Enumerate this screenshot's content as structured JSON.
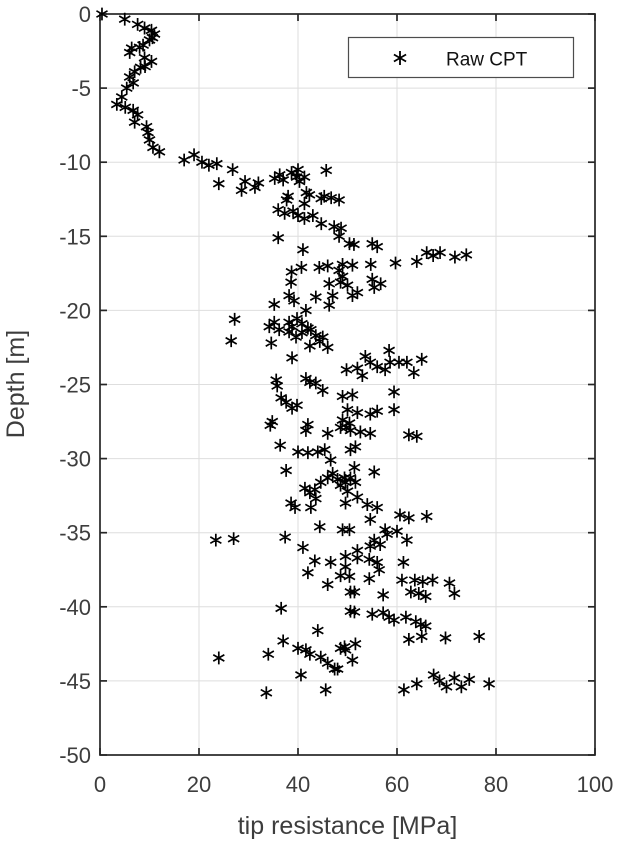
{
  "figure": {
    "background": "#ffffff"
  },
  "chart_data": {
    "type": "scatter",
    "title": "",
    "xlabel": "tip resistance [MPa]",
    "ylabel": "Depth [m]",
    "xlim": [
      0,
      100
    ],
    "ylim": [
      -50,
      0
    ],
    "xticks": [
      0,
      20,
      40,
      60,
      80,
      100
    ],
    "yticks": [
      0,
      -5,
      -10,
      -15,
      -20,
      -25,
      -30,
      -35,
      -40,
      -45,
      -50
    ],
    "grid": true,
    "grid_color": "#dedede",
    "axis_color": "#262626",
    "label_color": "#3d3d3d",
    "marker": {
      "shape": "asterisk",
      "color": "#000000",
      "size": 13
    },
    "legend": {
      "position": "top-right",
      "entries": [
        {
          "label": "Raw CPT",
          "marker": "asterisk"
        }
      ]
    },
    "series": [
      {
        "name": "Raw CPT"
      }
    ],
    "points": [
      [
        0.4,
        0
      ],
      [
        5,
        -0.35
      ],
      [
        7.6,
        -0.7
      ],
      [
        9,
        -0.95
      ],
      [
        10.4,
        -1.1
      ],
      [
        11,
        -1.35
      ],
      [
        10.6,
        -1.6
      ],
      [
        10,
        -1.75
      ],
      [
        8.7,
        -2.1
      ],
      [
        8,
        -2.25
      ],
      [
        6.4,
        -2.3
      ],
      [
        6,
        -2.6
      ],
      [
        9,
        -2.95
      ],
      [
        10.4,
        -3.2
      ],
      [
        9.1,
        -3.55
      ],
      [
        8.2,
        -3.6
      ],
      [
        7,
        -3.9
      ],
      [
        6,
        -4.25
      ],
      [
        6.7,
        -4.65
      ],
      [
        5.4,
        -5
      ],
      [
        4.4,
        -5.6
      ],
      [
        3.4,
        -6.1
      ],
      [
        5.1,
        -6.3
      ],
      [
        6.7,
        -6.5
      ],
      [
        7.6,
        -6.8
      ],
      [
        7,
        -7.3
      ],
      [
        9.4,
        -7.6
      ],
      [
        9.7,
        -8
      ],
      [
        10,
        -8.5
      ],
      [
        10.7,
        -9
      ],
      [
        12,
        -9.3
      ],
      [
        19,
        -9.5
      ],
      [
        17,
        -9.85
      ],
      [
        20.6,
        -10
      ],
      [
        22,
        -10.2
      ],
      [
        23.6,
        -10.1
      ],
      [
        26.8,
        -10.5
      ],
      [
        24,
        -11.45
      ],
      [
        28.6,
        -11.9
      ],
      [
        29.3,
        -11.3
      ],
      [
        31.3,
        -11.7
      ],
      [
        32,
        -11.4
      ],
      [
        35.3,
        -11.1
      ],
      [
        36.3,
        -10.85
      ],
      [
        37,
        -11.2
      ],
      [
        38.7,
        -10.7
      ],
      [
        39.7,
        -11
      ],
      [
        40.3,
        -11.3
      ],
      [
        41.3,
        -11
      ],
      [
        40,
        -10.5
      ],
      [
        45.7,
        -10.55
      ],
      [
        38,
        -12.3
      ],
      [
        37.7,
        -12.55
      ],
      [
        41.3,
        -12.8
      ],
      [
        41.7,
        -12.05
      ],
      [
        42.3,
        -12.2
      ],
      [
        44.7,
        -12.45
      ],
      [
        45.3,
        -12.3
      ],
      [
        46.7,
        -12.4
      ],
      [
        48.3,
        -12.55
      ],
      [
        36,
        -13.2
      ],
      [
        37.3,
        -13.45
      ],
      [
        39,
        -13.3
      ],
      [
        40,
        -13.6
      ],
      [
        41.3,
        -13.8
      ],
      [
        43,
        -13.6
      ],
      [
        44.7,
        -14.15
      ],
      [
        47.3,
        -14.35
      ],
      [
        48.7,
        -14.45
      ],
      [
        48.3,
        -15
      ],
      [
        36,
        -15.1
      ],
      [
        41,
        -15.9
      ],
      [
        50.4,
        -15.5
      ],
      [
        51.3,
        -15.55
      ],
      [
        55,
        -15.5
      ],
      [
        56,
        -15.7
      ],
      [
        66,
        -16.1
      ],
      [
        67.3,
        -16.3
      ],
      [
        68.7,
        -16.1
      ],
      [
        71.7,
        -16.4
      ],
      [
        74,
        -16.25
      ],
      [
        49,
        -16.9
      ],
      [
        51,
        -16.95
      ],
      [
        54.7,
        -16.9
      ],
      [
        59.7,
        -16.8
      ],
      [
        64,
        -16.7
      ],
      [
        38.7,
        -17.4
      ],
      [
        40.7,
        -17.1
      ],
      [
        44.3,
        -17.1
      ],
      [
        46,
        -17
      ],
      [
        48.3,
        -17.3
      ],
      [
        49,
        -17.7
      ],
      [
        55,
        -17.9
      ],
      [
        56.7,
        -18.2
      ],
      [
        38.6,
        -18.1
      ],
      [
        46.3,
        -18.2
      ],
      [
        48.6,
        -18.1
      ],
      [
        50,
        -18.3
      ],
      [
        52,
        -18.8
      ],
      [
        55.4,
        -18.45
      ],
      [
        35.2,
        -19.6
      ],
      [
        38.2,
        -19
      ],
      [
        39.2,
        -19.35
      ],
      [
        43.6,
        -19.1
      ],
      [
        47,
        -19
      ],
      [
        46.3,
        -19.65
      ],
      [
        51,
        -19
      ],
      [
        41.6,
        -20
      ],
      [
        27.2,
        -20.6
      ],
      [
        34.2,
        -21.1
      ],
      [
        35.2,
        -20.8
      ],
      [
        38.2,
        -20.8
      ],
      [
        38.8,
        -21.1
      ],
      [
        39.8,
        -20.55
      ],
      [
        40.8,
        -20.9
      ],
      [
        42,
        -21.2
      ],
      [
        38.2,
        -21.45
      ],
      [
        36.2,
        -21.3
      ],
      [
        26.5,
        -22.05
      ],
      [
        34.6,
        -22.2
      ],
      [
        39.6,
        -21.8
      ],
      [
        40.8,
        -21.5
      ],
      [
        42.6,
        -21.3
      ],
      [
        43.6,
        -21.7
      ],
      [
        45,
        -21.8
      ],
      [
        42.4,
        -22.4
      ],
      [
        44.4,
        -22.1
      ],
      [
        46,
        -22.5
      ],
      [
        38.8,
        -23.2
      ],
      [
        58.4,
        -22.7
      ],
      [
        53.6,
        -23.1
      ],
      [
        54.6,
        -23.5
      ],
      [
        52,
        -23.9
      ],
      [
        53,
        -24.4
      ],
      [
        56,
        -23.8
      ],
      [
        58.6,
        -23.5
      ],
      [
        60.4,
        -23.5
      ],
      [
        62,
        -23.5
      ],
      [
        65,
        -23.3
      ],
      [
        63.4,
        -24.2
      ],
      [
        57.6,
        -24
      ],
      [
        49.8,
        -24
      ],
      [
        35.6,
        -24.7
      ],
      [
        35.8,
        -25.1
      ],
      [
        41.6,
        -24.6
      ],
      [
        42.4,
        -24.85
      ],
      [
        43.6,
        -24.9
      ],
      [
        45,
        -25.4
      ],
      [
        51,
        -25.7
      ],
      [
        59.4,
        -25.5
      ],
      [
        49,
        -25.8
      ],
      [
        36.6,
        -25.9
      ],
      [
        37.6,
        -26.2
      ],
      [
        39.8,
        -26.4
      ],
      [
        38.8,
        -26.6
      ],
      [
        50,
        -26.7
      ],
      [
        52,
        -26.9
      ],
      [
        54.6,
        -27
      ],
      [
        56,
        -26.8
      ],
      [
        59.4,
        -26.7
      ],
      [
        34.8,
        -27.5
      ],
      [
        49,
        -27.4
      ],
      [
        48.6,
        -27.9
      ],
      [
        49.8,
        -27.9
      ],
      [
        42,
        -27.7
      ],
      [
        34.4,
        -27.75
      ],
      [
        50.4,
        -27.6
      ],
      [
        41.6,
        -28.1
      ],
      [
        46,
        -28.3
      ],
      [
        50.6,
        -28.1
      ],
      [
        52.6,
        -28.2
      ],
      [
        54.6,
        -28.3
      ],
      [
        62.4,
        -28.4
      ],
      [
        64,
        -28.5
      ],
      [
        36.4,
        -29.1
      ],
      [
        40,
        -29.55
      ],
      [
        42,
        -29.6
      ],
      [
        44,
        -29.55
      ],
      [
        45.4,
        -29.4
      ],
      [
        50.6,
        -29.4
      ],
      [
        51.6,
        -29.2
      ],
      [
        46.6,
        -30.1
      ],
      [
        37.6,
        -30.8
      ],
      [
        51.4,
        -30.6
      ],
      [
        55.4,
        -30.9
      ],
      [
        47,
        -31
      ],
      [
        46,
        -31.3
      ],
      [
        44.6,
        -31.6
      ],
      [
        48,
        -31.4
      ],
      [
        48.6,
        -31.8
      ],
      [
        49.6,
        -31.6
      ],
      [
        50.6,
        -31.3
      ],
      [
        49.4,
        -31.3
      ],
      [
        51.6,
        -31.6
      ],
      [
        41.4,
        -32
      ],
      [
        42.4,
        -32.3
      ],
      [
        43.4,
        -32.1
      ],
      [
        50,
        -32.2
      ],
      [
        52,
        -32.6
      ],
      [
        43.6,
        -32.7
      ],
      [
        38.6,
        -33
      ],
      [
        39.4,
        -33.3
      ],
      [
        42.6,
        -33.3
      ],
      [
        49.6,
        -33
      ],
      [
        54,
        -33.1
      ],
      [
        56,
        -33.3
      ],
      [
        60.6,
        -33.8
      ],
      [
        62.4,
        -34
      ],
      [
        66,
        -33.9
      ],
      [
        54.6,
        -34.1
      ],
      [
        44.4,
        -34.6
      ],
      [
        49,
        -34.8
      ],
      [
        50.4,
        -34.8
      ],
      [
        57.6,
        -34.8
      ],
      [
        60,
        -34.9
      ],
      [
        37.4,
        -35.3
      ],
      [
        23.4,
        -35.5
      ],
      [
        27,
        -35.4
      ],
      [
        55.4,
        -35.5
      ],
      [
        58,
        -35.1
      ],
      [
        62,
        -35.5
      ],
      [
        54.6,
        -35.9
      ],
      [
        56.6,
        -35.8
      ],
      [
        41,
        -36
      ],
      [
        52,
        -36.2
      ],
      [
        49.6,
        -36.6
      ],
      [
        52,
        -36.7
      ],
      [
        54.4,
        -36.8
      ],
      [
        43.4,
        -36.9
      ],
      [
        56,
        -37
      ],
      [
        46.6,
        -37
      ],
      [
        61.3,
        -37
      ],
      [
        49.6,
        -37.3
      ],
      [
        42,
        -37.7
      ],
      [
        48.6,
        -37.9
      ],
      [
        50.4,
        -37.95
      ],
      [
        56.4,
        -37.5
      ],
      [
        46,
        -38.5
      ],
      [
        54.4,
        -38.1
      ],
      [
        61,
        -38.2
      ],
      [
        63.6,
        -38.2
      ],
      [
        65.2,
        -38.3
      ],
      [
        67.2,
        -38.2
      ],
      [
        70.6,
        -38.4
      ],
      [
        51.4,
        -39
      ],
      [
        50.6,
        -39
      ],
      [
        57.2,
        -39.2
      ],
      [
        62.8,
        -39
      ],
      [
        64.4,
        -39.1
      ],
      [
        65.8,
        -39.3
      ],
      [
        71.6,
        -39.1
      ],
      [
        36.6,
        -40.1
      ],
      [
        50.6,
        -40.3
      ],
      [
        51.4,
        -40.35
      ],
      [
        55,
        -40.5
      ],
      [
        57.2,
        -40.4
      ],
      [
        58.4,
        -40.7
      ],
      [
        59.4,
        -40.9
      ],
      [
        61.8,
        -40.7
      ],
      [
        63.8,
        -41
      ],
      [
        64.8,
        -41.2
      ],
      [
        65.8,
        -41.3
      ],
      [
        44,
        -41.6
      ],
      [
        62.4,
        -42.2
      ],
      [
        65,
        -42
      ],
      [
        69.8,
        -42.1
      ],
      [
        76.6,
        -42
      ],
      [
        37,
        -42.3
      ],
      [
        49.4,
        -42.7
      ],
      [
        51.6,
        -42.5
      ],
      [
        48.6,
        -42.8
      ],
      [
        49.6,
        -42.9
      ],
      [
        40,
        -42.8
      ],
      [
        41.6,
        -42.9
      ],
      [
        34,
        -43.2
      ],
      [
        42.4,
        -43.2
      ],
      [
        44.6,
        -43.4
      ],
      [
        24,
        -43.45
      ],
      [
        46,
        -43.8
      ],
      [
        51,
        -43.6
      ],
      [
        47.4,
        -44.2
      ],
      [
        48,
        -44.2
      ],
      [
        40.6,
        -44.6
      ],
      [
        67.4,
        -44.6
      ],
      [
        71.6,
        -44.8
      ],
      [
        74.6,
        -44.9
      ],
      [
        68.6,
        -45
      ],
      [
        64,
        -45.2
      ],
      [
        78.6,
        -45.2
      ],
      [
        70,
        -45.4
      ],
      [
        73,
        -45.4
      ],
      [
        61.4,
        -45.6
      ],
      [
        45.6,
        -45.6
      ],
      [
        33.6,
        -45.8
      ]
    ]
  }
}
